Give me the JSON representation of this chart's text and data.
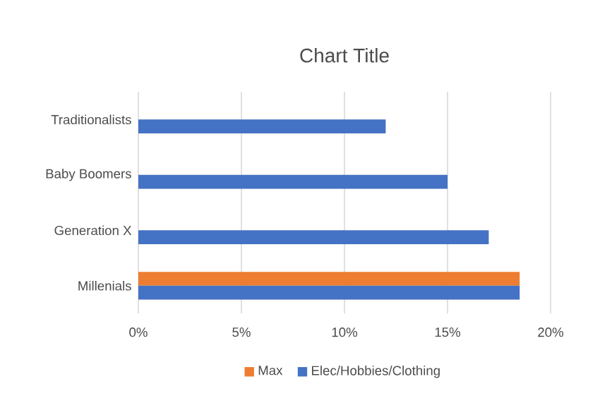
{
  "chart_data": {
    "type": "bar",
    "orientation": "horizontal",
    "title": "Chart Title",
    "categories": [
      "Traditionalists",
      "Baby Boomers",
      "Generation X",
      "Millenials"
    ],
    "series": [
      {
        "name": "Max",
        "color": "#ed7d31",
        "values": [
          null,
          null,
          null,
          18.5
        ]
      },
      {
        "name": "Elec/Hobbies/Clothing",
        "color": "#4472c4",
        "values": [
          12,
          15,
          17,
          18.5
        ]
      }
    ],
    "xlim": [
      0,
      20
    ],
    "xticks": [
      {
        "value": 0,
        "label": "0%"
      },
      {
        "value": 5,
        "label": "5%"
      },
      {
        "value": 10,
        "label": "10%"
      },
      {
        "value": 15,
        "label": "15%"
      },
      {
        "value": 20,
        "label": "20%"
      }
    ],
    "grid": "x",
    "legend": "bottom"
  }
}
